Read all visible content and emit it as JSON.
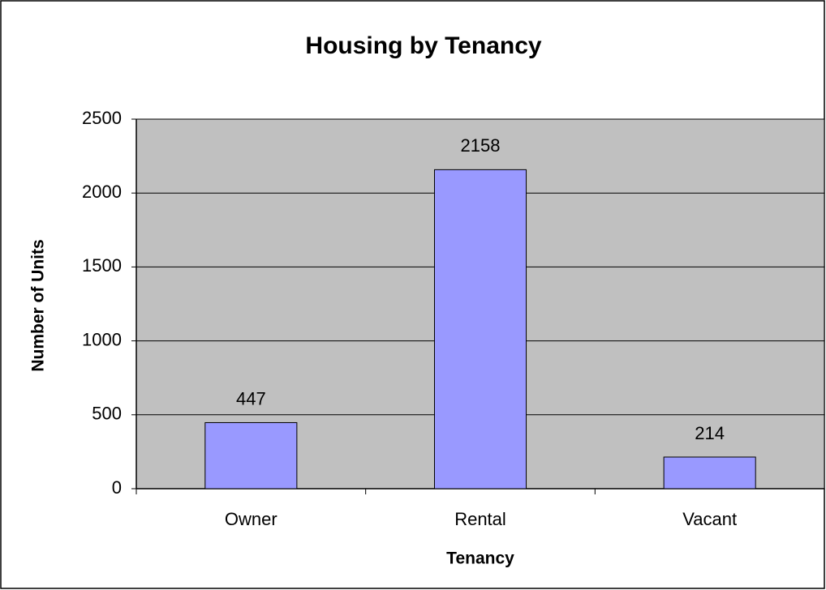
{
  "chart_data": {
    "type": "bar",
    "title": "Housing by Tenancy",
    "x_label": "Tenancy",
    "y_label": "Number of Units",
    "categories": [
      "Owner",
      "Rental",
      "Vacant"
    ],
    "values": [
      447,
      2158,
      214
    ],
    "color": "#9999ff",
    "plot_background": "#c0c0c0",
    "ylim": [
      0,
      2500
    ],
    "yticks": [
      0,
      500,
      1000,
      1500,
      2000,
      2500
    ],
    "grid": true
  }
}
